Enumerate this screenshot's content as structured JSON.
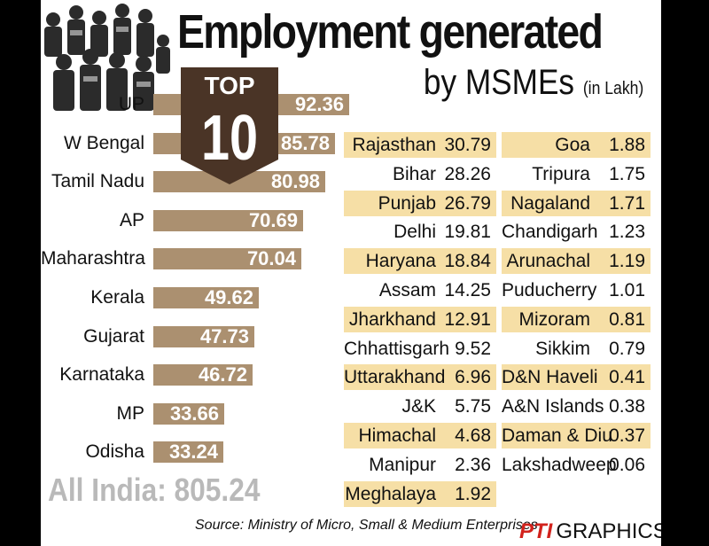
{
  "title": {
    "line1": "Employment generated",
    "line2": "by MSMEs",
    "unit": "(in Lakh)"
  },
  "badge": {
    "line1": "TOP",
    "line2": "10"
  },
  "chart_data": [
    {
      "type": "bar",
      "orientation": "horizontal",
      "categories": [
        "UP",
        "W Bengal",
        "Tamil Nadu",
        "AP",
        "Maharashtra",
        "Kerala",
        "Gujarat",
        "Karnataka",
        "MP",
        "Odisha"
      ],
      "values": [
        92.36,
        85.78,
        80.98,
        70.69,
        70.04,
        49.62,
        47.73,
        46.72,
        33.66,
        33.24
      ],
      "xlim": [
        0,
        100
      ],
      "grid": false,
      "bar_color": "#ab9070"
    },
    {
      "type": "table",
      "columns": [
        [
          {
            "name": "Rajasthan",
            "value": "30.79"
          },
          {
            "name": "Bihar",
            "value": "28.26"
          },
          {
            "name": "Punjab",
            "value": "26.79"
          },
          {
            "name": "Delhi",
            "value": "19.81"
          },
          {
            "name": "Haryana",
            "value": "18.84"
          },
          {
            "name": "Assam",
            "value": "14.25"
          },
          {
            "name": "Jharkhand",
            "value": "12.91"
          },
          {
            "name": "Chhattisgarh",
            "value": "9.52"
          },
          {
            "name": "Uttarakhand",
            "value": "6.96"
          },
          {
            "name": "J&K",
            "value": "5.75"
          },
          {
            "name": "Himachal",
            "value": "4.68"
          },
          {
            "name": "Manipur",
            "value": "2.36"
          },
          {
            "name": "Meghalaya",
            "value": "1.92"
          }
        ],
        [
          {
            "name": "Goa",
            "value": "1.88"
          },
          {
            "name": "Tripura",
            "value": "1.75"
          },
          {
            "name": "Nagaland",
            "value": "1.71"
          },
          {
            "name": "Chandigarh",
            "value": "1.23"
          },
          {
            "name": "Arunachal",
            "value": "1.19"
          },
          {
            "name": "Puducherry",
            "value": "1.01"
          },
          {
            "name": "Mizoram",
            "value": "0.81"
          },
          {
            "name": "Sikkim",
            "value": "0.79"
          },
          {
            "name": "D&N Haveli",
            "value": "0.41"
          },
          {
            "name": "A&N Islands",
            "value": "0.38"
          },
          {
            "name": "Daman & Diu",
            "value": "0.37"
          },
          {
            "name": "Lakshadweep",
            "value": "0.06"
          }
        ]
      ],
      "highlight_color": "#f6dfa6"
    }
  ],
  "total": "All India: 805.24",
  "source": "Source: Ministry of Micro, Small & Medium Enterprises",
  "credit": {
    "logo": "PTI",
    "label": "GRAPHICS"
  },
  "colors": {
    "badge": "#4a3426",
    "background": "#ffffff",
    "total": "#b9b9b9"
  }
}
